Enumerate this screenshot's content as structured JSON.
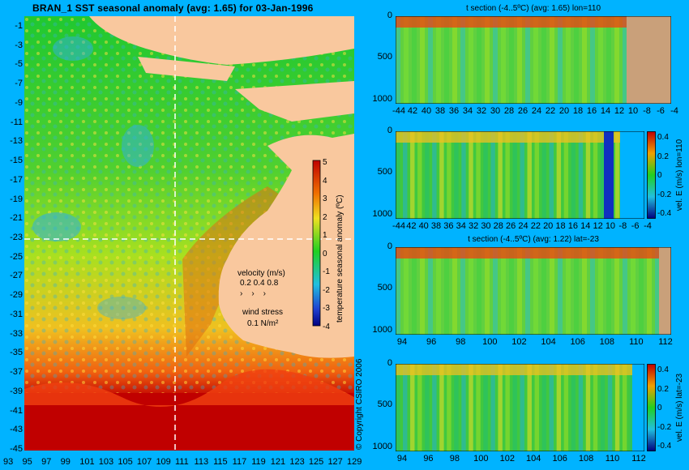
{
  "map": {
    "title": "BRAN_1  SST seasonal anomaly (avg: 1.65) for 03-Jan-1996",
    "lat_ticks": [
      "-1",
      "-3",
      "-5",
      "-7",
      "-9",
      "-11",
      "-13",
      "-15",
      "-17",
      "-19",
      "-21",
      "-23",
      "-25",
      "-27",
      "-29",
      "-31",
      "-33",
      "-35",
      "-37",
      "-39",
      "-41",
      "-43",
      "-45"
    ],
    "lon_ticks": [
      "93",
      "95",
      "97",
      "99",
      "101",
      "103",
      "105",
      "107",
      "109",
      "111",
      "113",
      "115",
      "117",
      "119",
      "121",
      "123",
      "125",
      "127",
      "129"
    ],
    "colorbar": {
      "label": "temperature seasonal anomaly (ºC)",
      "ticks": [
        "5",
        "4",
        "3",
        "2",
        "1",
        "0",
        "-1",
        "-2",
        "-3",
        "-4"
      ]
    },
    "velocity_legend": {
      "title": "velocity (m/s)",
      "values": "0.2 0.4 0.8"
    },
    "wind_legend": {
      "title": "wind stress",
      "value": "0.1 N/m²"
    },
    "copyright": "© Copyright CSIRO 2006",
    "colors": {
      "land": "#f9c89e",
      "hot": "#c00000",
      "sea_green": "#20d020",
      "background": "#00b3ff"
    }
  },
  "panels": [
    {
      "title": "t section (-4..5ºC) (avg: 1.65) lon=110",
      "y_ticks": [
        "0",
        "500",
        "1000"
      ],
      "x_ticks": [
        "-44",
        "42",
        "40",
        "38",
        "36",
        "34",
        "32",
        "30",
        "28",
        "26",
        "24",
        "22",
        "20",
        "18",
        "16",
        "14",
        "12",
        "10",
        "-8",
        "-6",
        "-4"
      ],
      "side_label": ""
    },
    {
      "title": "",
      "y_ticks": [
        "0",
        "500",
        "1000"
      ],
      "x_ticks": [
        "-44",
        "42",
        "40",
        "38",
        "36",
        "34",
        "32",
        "30",
        "28",
        "26",
        "24",
        "22",
        "20",
        "18",
        "16",
        "14",
        "12",
        "10",
        "-8",
        "-6",
        "-4"
      ],
      "colorbar_ticks": [
        "0.4",
        "0.2",
        "0",
        "-0.2",
        "-0.4"
      ],
      "side_label": "vel. E (m/s) lon=110"
    },
    {
      "title": "t section (-4..5ºC) (avg: 1.22) lat=-23",
      "y_ticks": [
        "0",
        "500",
        "1000"
      ],
      "x_ticks": [
        "94",
        "96",
        "98",
        "100",
        "102",
        "104",
        "106",
        "108",
        "110",
        "112"
      ],
      "side_label": ""
    },
    {
      "title": "",
      "y_ticks": [
        "0",
        "500",
        "1000"
      ],
      "x_ticks": [
        "94",
        "96",
        "98",
        "100",
        "102",
        "104",
        "106",
        "108",
        "110",
        "112"
      ],
      "colorbar_ticks": [
        "0.4",
        "0.2",
        "0",
        "-0.2",
        "-0.4"
      ],
      "side_label": "vel. E (m/s) lat=-23"
    }
  ]
}
